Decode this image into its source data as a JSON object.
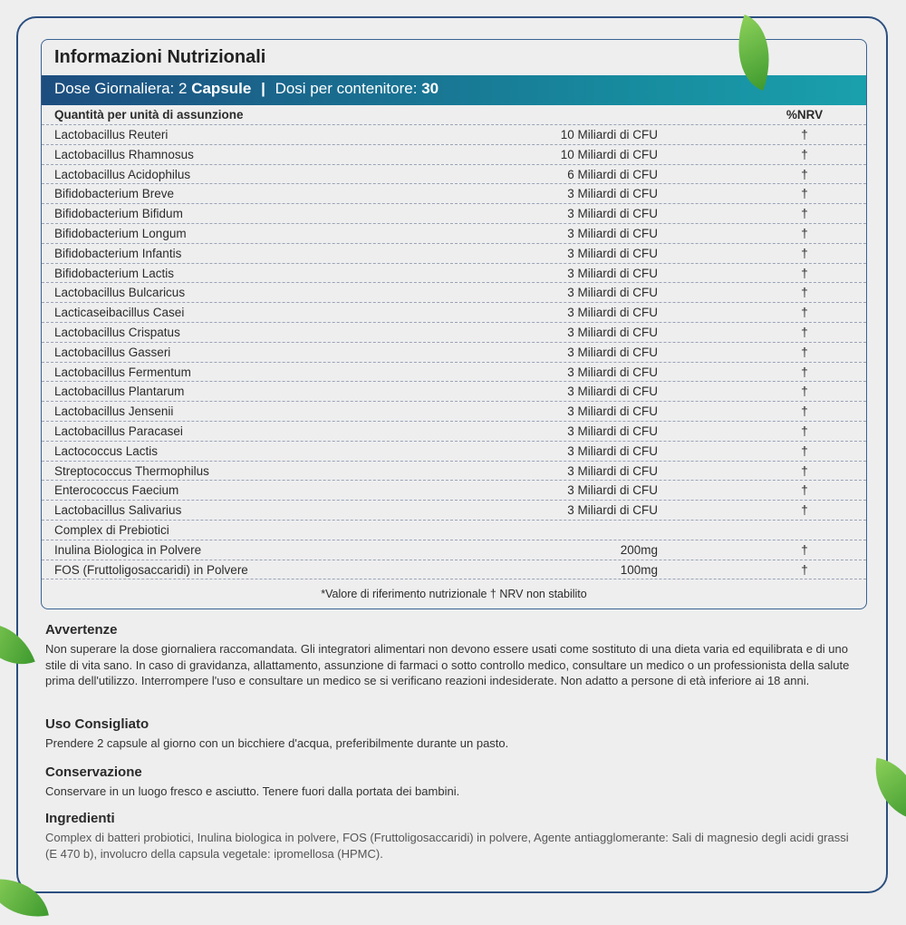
{
  "panel": {
    "title": "Informazioni Nutrizionali",
    "band": {
      "dose_label": "Dose Giornaliera: 2",
      "dose_unit": "Capsule",
      "separator": "|",
      "doses_label": "Dosi per contenitore:",
      "doses_value": "30"
    },
    "header": {
      "name": "Quantità per unità di assunzione",
      "nrv": "%NRV"
    },
    "rows": [
      {
        "name": "Lactobacillus Reuteri",
        "amount": "10 Miliardi di CFU",
        "nrv": "†"
      },
      {
        "name": "Lactobacillus Rhamnosus",
        "amount": "10 Miliardi di CFU",
        "nrv": "†"
      },
      {
        "name": "Lactobacillus Acidophilus",
        "amount": "6 Miliardi di CFU",
        "nrv": "†"
      },
      {
        "name": "Bifidobacterium Breve",
        "amount": "3 Miliardi di CFU",
        "nrv": "†"
      },
      {
        "name": "Bifidobacterium Bifidum",
        "amount": "3 Miliardi di CFU",
        "nrv": "†"
      },
      {
        "name": "Bifidobacterium Longum",
        "amount": "3 Miliardi di CFU",
        "nrv": "†"
      },
      {
        "name": "Bifidobacterium Infantis",
        "amount": "3 Miliardi di CFU",
        "nrv": "†"
      },
      {
        "name": "Bifidobacterium Lactis",
        "amount": "3 Miliardi di CFU",
        "nrv": "†"
      },
      {
        "name": "Lactobacillus Bulcaricus",
        "amount": "3 Miliardi di CFU",
        "nrv": "†"
      },
      {
        "name": "Lacticaseibacillus Casei",
        "amount": "3 Miliardi di CFU",
        "nrv": "†"
      },
      {
        "name": "Lactobacillus Crispatus",
        "amount": "3 Miliardi di CFU",
        "nrv": "†"
      },
      {
        "name": "Lactobacillus Gasseri",
        "amount": "3 Miliardi di CFU",
        "nrv": "†"
      },
      {
        "name": "Lactobacillus Fermentum",
        "amount": "3 Miliardi di CFU",
        "nrv": "†"
      },
      {
        "name": "Lactobacillus Plantarum",
        "amount": "3 Miliardi di CFU",
        "nrv": "†"
      },
      {
        "name": "Lactobacillus Jensenii",
        "amount": "3 Miliardi di CFU",
        "nrv": "†"
      },
      {
        "name": "Lactobacillus Paracasei",
        "amount": "3 Miliardi di CFU",
        "nrv": "†"
      },
      {
        "name": "Lactococcus Lactis",
        "amount": "3 Miliardi di CFU",
        "nrv": "†"
      },
      {
        "name": "Streptococcus Thermophilus",
        "amount": "3 Miliardi di CFU",
        "nrv": "†"
      },
      {
        "name": "Enterococcus Faecium",
        "amount": "3 Miliardi di CFU",
        "nrv": "†"
      },
      {
        "name": "Lactobacillus Salivarius",
        "amount": "3 Miliardi di CFU",
        "nrv": "†"
      },
      {
        "name": "Complex di Prebiotici",
        "amount": "",
        "nrv": ""
      },
      {
        "name": "Inulina Biologica in Polvere",
        "amount": "200mg",
        "nrv": "†"
      },
      {
        "name": "FOS (Fruttoligosaccaridi) in Polvere",
        "amount": "100mg",
        "nrv": "†"
      }
    ],
    "note": "*Valore di riferimento nutrizionale † NRV non stabilito"
  },
  "sections": [
    {
      "title": "Avvertenze",
      "text": "Non superare la dose giornaliera raccomandata. Gli integratori alimentari non devono essere usati come sostituto di una dieta varia ed equilibrata e di uno stile di vita sano. In caso di gravidanza, allattamento, assunzione di farmaci o sotto controllo medico, consultare un medico o un professionista della salute prima dell'utilizzo. Interrompere l'uso e consultare un medico se si verificano reazioni indesiderate. Non adatto a persone di età inferiore ai 18 anni."
    },
    {
      "title": "Uso Consigliato",
      "text": "Prendere 2 capsule al giorno con un bicchiere d'acqua, preferibilmente durante un pasto."
    },
    {
      "title": "Conservazione",
      "text": "Conservare in un luogo fresco e asciutto. Tenere fuori dalla portata dei bambini."
    },
    {
      "title": "Ingredienti",
      "text": "Complex di batteri probiotici, Inulina biologica in polvere, FOS (Fruttoligosaccaridi) in polvere, Agente antiagglomerante: Sali di magnesio degli acidi grassi (E 470 b), involucro della capsula vegetale: ipromellosa (HPMC)."
    }
  ],
  "colors": {
    "band_start": "#1d4d7f",
    "band_end": "#1aa0ad",
    "frame": "#2c4f7f",
    "leaf": "#5fb53d"
  }
}
